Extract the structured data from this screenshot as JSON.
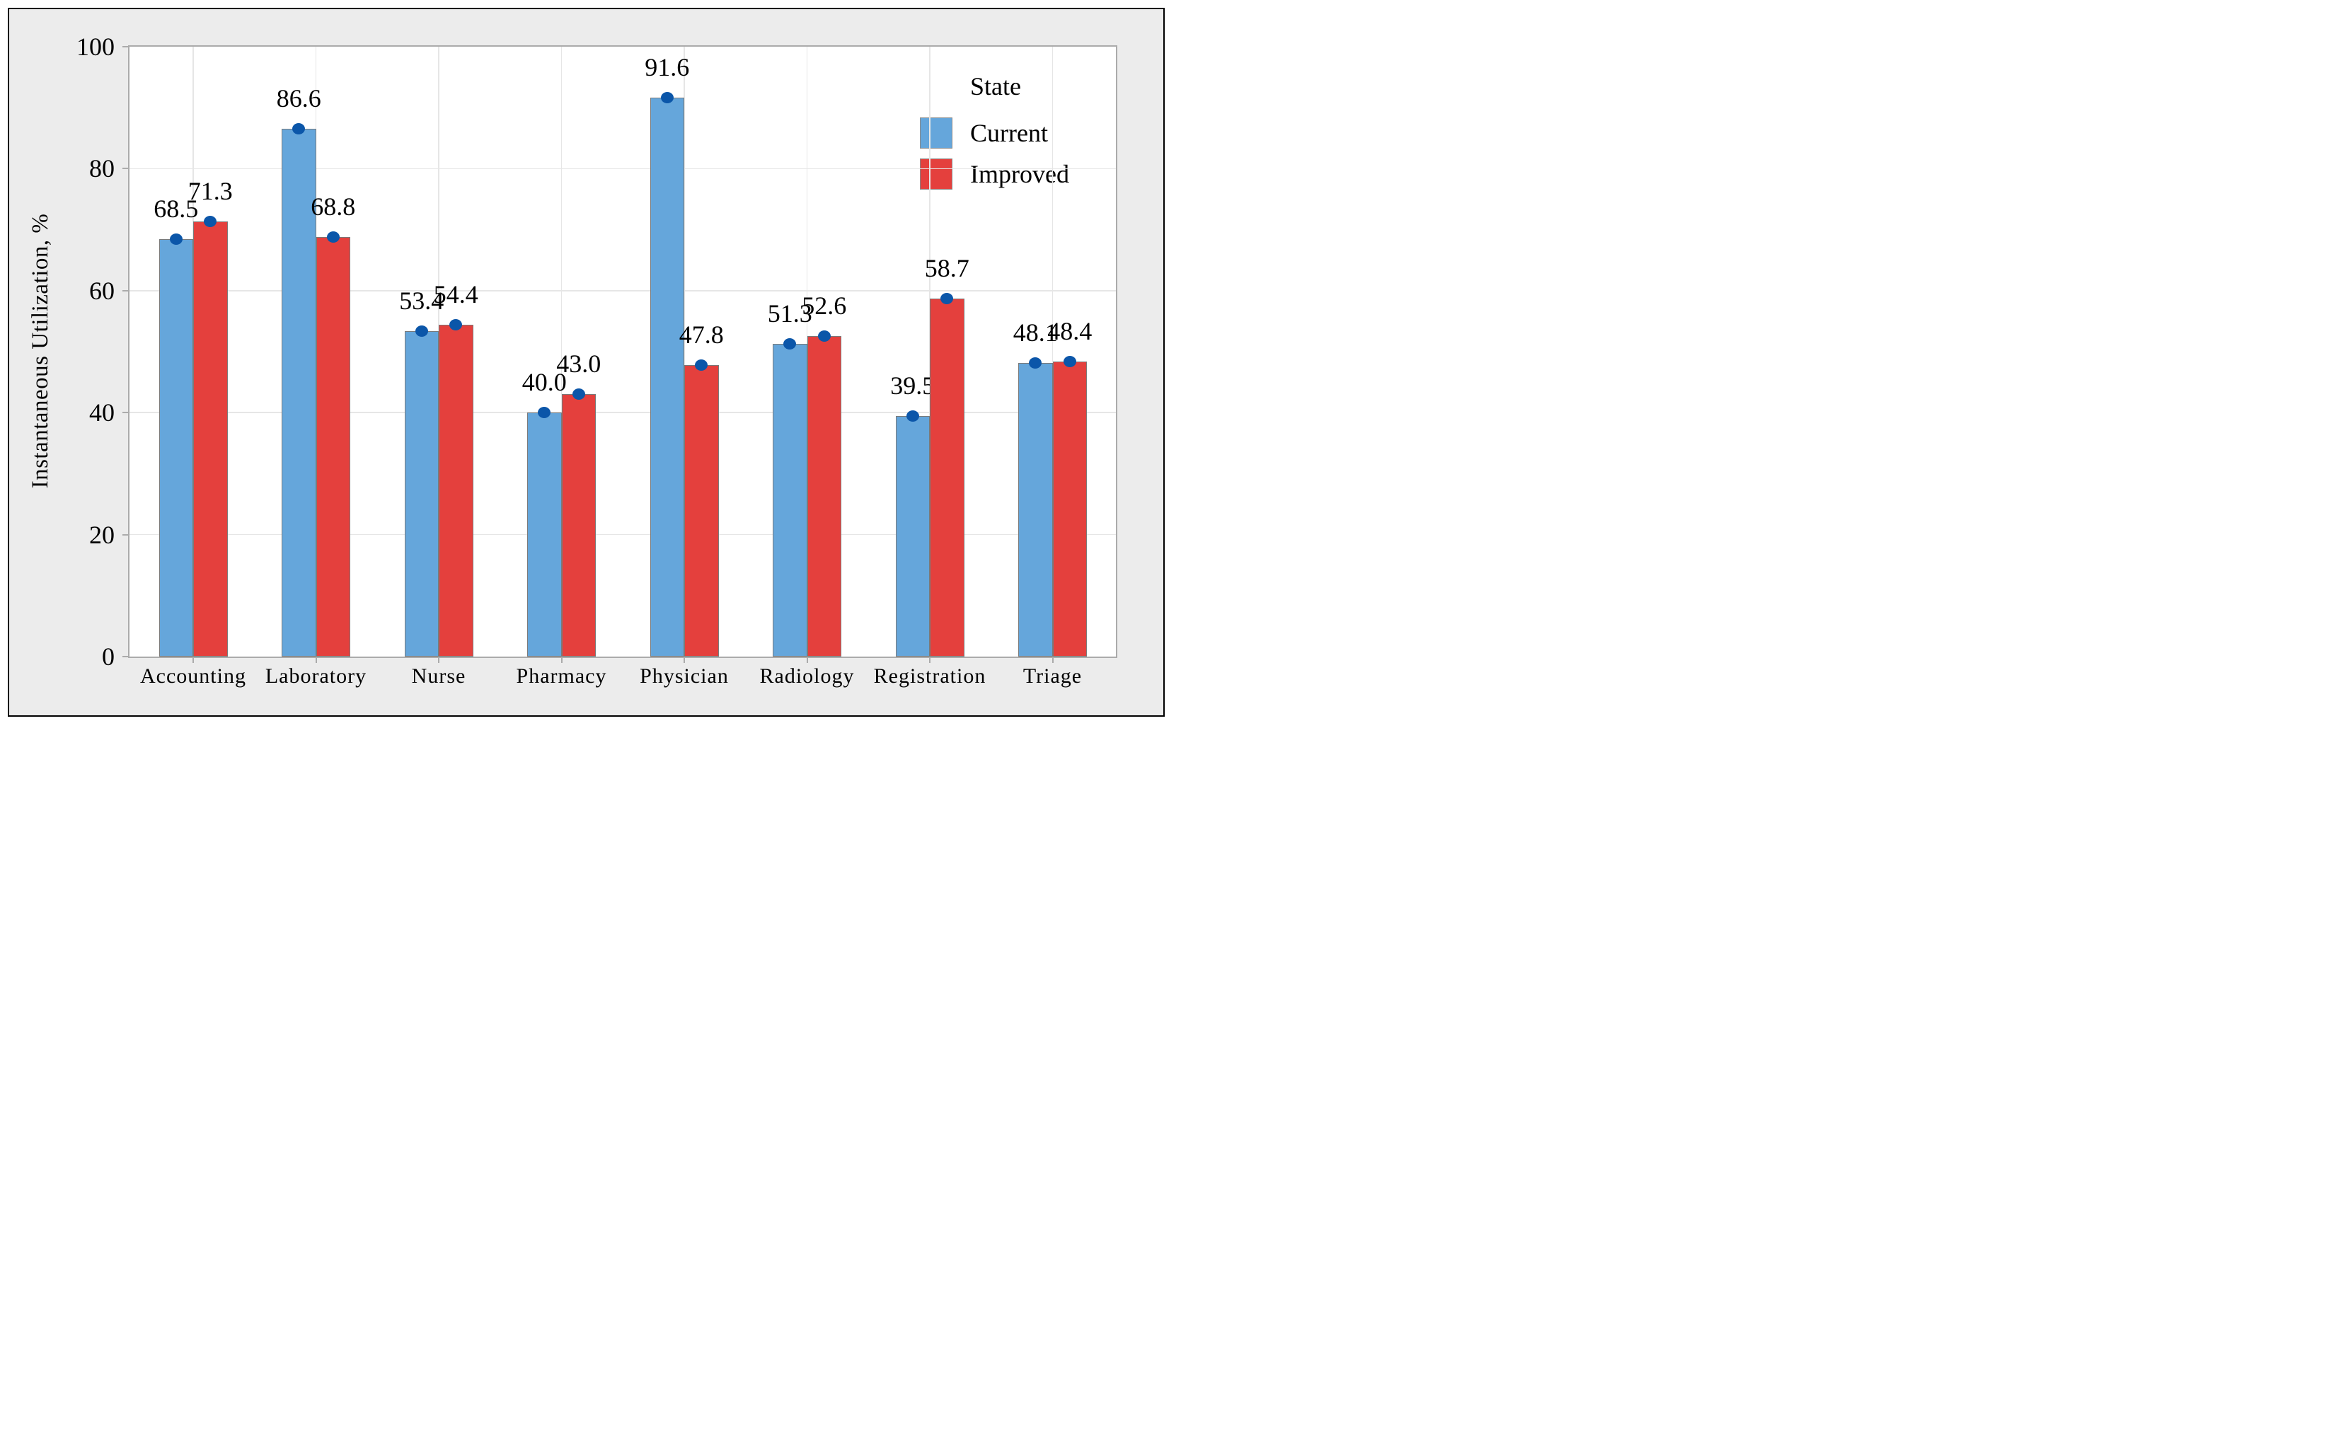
{
  "chart_data": {
    "type": "bar",
    "title": "",
    "categories": [
      "Accounting",
      "Laboratory",
      "Nurse",
      "Pharmacy",
      "Physician",
      "Radiology",
      "Registration",
      "Triage"
    ],
    "series": [
      {
        "name": "Current",
        "color": "#65A6DB",
        "values": [
          68.5,
          86.6,
          53.4,
          40.0,
          91.6,
          51.3,
          39.5,
          48.1
        ]
      },
      {
        "name": "Improved",
        "color": "#E4403D",
        "values": [
          71.3,
          68.8,
          54.4,
          43.0,
          47.8,
          52.6,
          58.7,
          48.4
        ]
      }
    ],
    "xlabel": "",
    "ylabel": "Instantaneous Utilization, %",
    "ylim": [
      0,
      100
    ],
    "yticks": [
      0,
      20,
      40,
      60,
      80,
      100
    ],
    "grid": true,
    "value_labels": true,
    "value_label_format": "one-decimal",
    "legend": {
      "title": "State",
      "position": "top-right-inside"
    },
    "marker": {
      "shape": "ellipse",
      "color": "#0B56A9"
    },
    "bar_outline_color": "#7A7A7A"
  },
  "style": {
    "outer_background": "#FFFFFF",
    "frame_background": "#ECECEC",
    "frame_border_color": "#000000",
    "plot_background": "#FFFFFF",
    "axis_line_color": "#ABABAB",
    "gridline_color": "#E6E6E6",
    "text_color": "#000000"
  }
}
